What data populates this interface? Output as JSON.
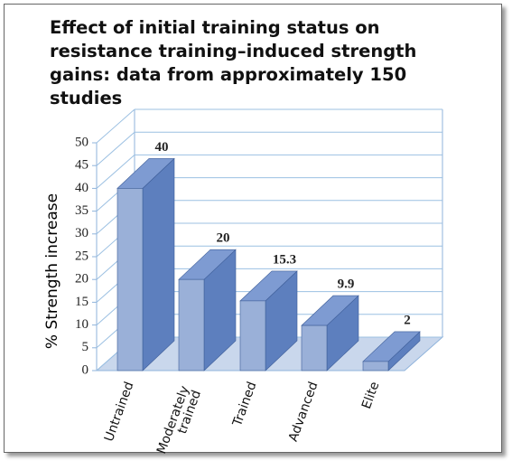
{
  "chart_data": {
    "type": "bar3d",
    "title": "Effect of initial training status on resistance training–induced strength gains: data from approximately 150 studies",
    "y_label": "% Strength increase",
    "categories": [
      "Untrained",
      "Moderately trained",
      "Trained",
      "Advanced",
      "Elite"
    ],
    "values": [
      40,
      20,
      15.3,
      9.9,
      2
    ],
    "ylim": [
      0,
      50
    ],
    "yticks": [
      0,
      5,
      10,
      15,
      20,
      25,
      30,
      35,
      40,
      45,
      50
    ],
    "grid": true,
    "color": "#9ab0d8"
  }
}
